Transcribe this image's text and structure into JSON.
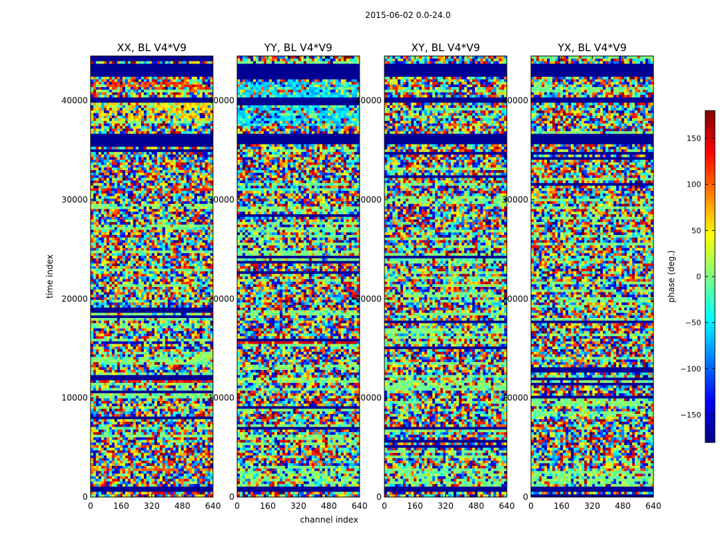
{
  "suptitle": "2015-06-02 0.0-24.0",
  "chart_data": {
    "type": "heatmap",
    "colormap": "jet",
    "xlabel": "channel index",
    "ylabel": "time index",
    "xlim": [
      0,
      640
    ],
    "ylim": [
      0,
      44500
    ],
    "xticks": [
      "0",
      "160",
      "320",
      "480",
      "640"
    ],
    "yticks": [
      "0",
      "10000",
      "20000",
      "30000",
      "40000"
    ],
    "ytick_values": [
      0,
      10000,
      20000,
      30000,
      40000
    ],
    "xtick_values": [
      0,
      160,
      320,
      480,
      640
    ],
    "panels": [
      {
        "title": "XX, BL V4*V9",
        "flags": [
          [
            42500,
            43800
          ],
          [
            39800,
            40400
          ],
          [
            35600,
            36600
          ],
          [
            600,
            1000
          ]
        ],
        "bands": [
          [
            41200,
            42000,
            115,
            0.55
          ],
          [
            38000,
            40000,
            60,
            0.45
          ],
          [
            30800,
            31200,
            130,
            0.6
          ],
          [
            15400,
            15700,
            -160,
            0.7
          ],
          [
            11400,
            11800,
            130,
            0.6
          ],
          [
            2700,
            3000,
            100,
            0.6
          ]
        ]
      },
      {
        "title": "YY, BL V4*V9",
        "flags": [
          [
            42500,
            43800
          ],
          [
            39800,
            40400
          ],
          [
            35600,
            36600
          ],
          [
            600,
            1000
          ]
        ],
        "bands": [
          [
            37500,
            42000,
            -60,
            0.55
          ],
          [
            30800,
            31200,
            -20,
            0.6
          ],
          [
            15400,
            15700,
            150,
            0.7
          ],
          [
            11400,
            12000,
            15,
            0.6
          ],
          [
            1000,
            2600,
            0,
            0.5
          ]
        ]
      },
      {
        "title": "XY, BL V4*V9",
        "flags": [
          [
            42500,
            43800
          ],
          [
            39800,
            40400
          ],
          [
            35600,
            36600
          ],
          [
            600,
            1000
          ]
        ],
        "bands": [
          [
            23900,
            24400,
            -20,
            0.5
          ],
          [
            12000,
            12400,
            -15,
            0.4
          ],
          [
            1000,
            2600,
            0,
            0.5
          ]
        ]
      },
      {
        "title": "YX, BL V4*V9",
        "flags": [
          [
            42500,
            43800
          ],
          [
            39800,
            40400
          ],
          [
            35600,
            36600
          ],
          [
            600,
            1000
          ]
        ],
        "bands": [
          [
            23900,
            24400,
            -20,
            0.5
          ],
          [
            12000,
            12400,
            -15,
            0.4
          ],
          [
            1000,
            2600,
            0,
            0.5
          ]
        ]
      }
    ],
    "colorbar": {
      "label": "phase (deg.)",
      "range": [
        -180,
        180
      ],
      "ticks": [
        "150",
        "100",
        "50",
        "0",
        "−50",
        "−100",
        "−150"
      ],
      "tick_values": [
        150,
        100,
        50,
        0,
        -50,
        -100,
        -150
      ]
    }
  }
}
